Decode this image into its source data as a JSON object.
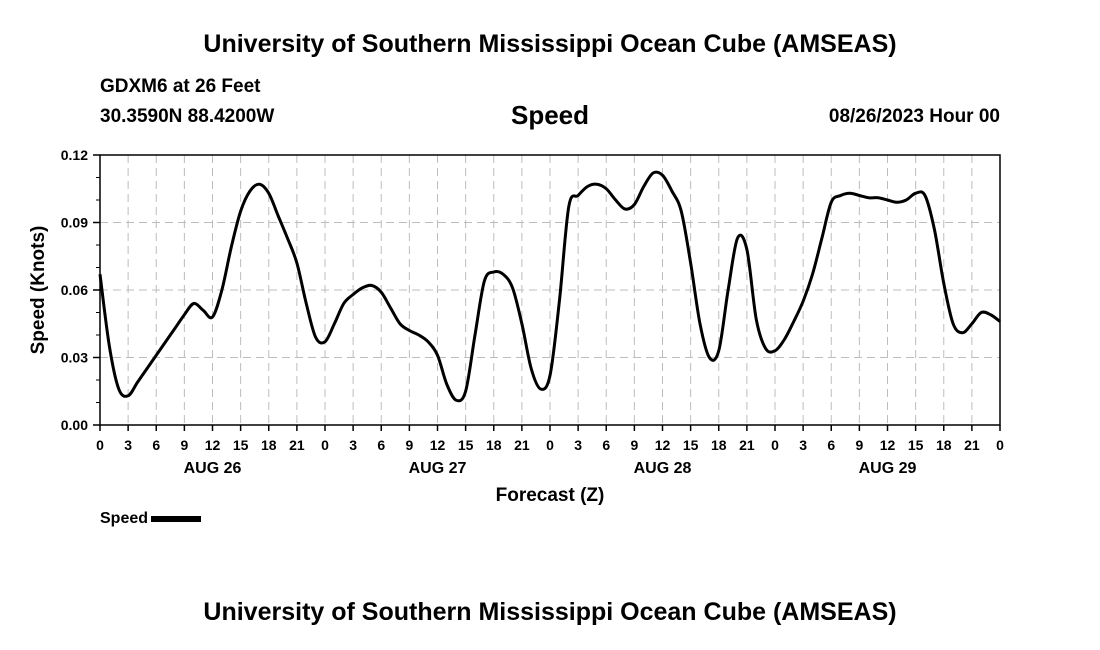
{
  "page": {
    "title_top": "University of Southern Mississippi Ocean Cube (AMSEAS)",
    "title_bottom": "University of Southern Mississippi Ocean Cube (AMSEAS)",
    "station": "GDXM6 at 26 Feet",
    "coords": "30.3590N  88.4200W",
    "datetime": "08/26/2023 Hour 00"
  },
  "chart_data": {
    "type": "line",
    "title": "Speed",
    "xlabel": "Forecast (Z)",
    "ylabel": "Speed (Knots)",
    "ylim": [
      0,
      0.12
    ],
    "xlim": [
      0,
      96
    ],
    "y_ticks": [
      "0.00",
      "0.03",
      "0.06",
      "0.09",
      "0.12"
    ],
    "x_tick_labels": [
      "0",
      "3",
      "6",
      "9",
      "12",
      "15",
      "18",
      "21",
      "0",
      "3",
      "6",
      "9",
      "12",
      "15",
      "18",
      "21",
      "0",
      "3",
      "6",
      "9",
      "12",
      "15",
      "18",
      "21",
      "0",
      "3",
      "6",
      "9",
      "12",
      "15",
      "18",
      "21",
      "0"
    ],
    "day_labels": [
      {
        "label": "AUG 26",
        "hour": 12
      },
      {
        "label": "AUG 27",
        "hour": 36
      },
      {
        "label": "AUG 28",
        "hour": 60
      },
      {
        "label": "AUG 29",
        "hour": 84
      }
    ],
    "grid": true,
    "color": "#000000",
    "series": [
      {
        "name": "Speed",
        "x": [
          0,
          1,
          2,
          3,
          4,
          5,
          6,
          7,
          8,
          9,
          10,
          11,
          12,
          13,
          14,
          15,
          16,
          17,
          18,
          19,
          20,
          21,
          22,
          23,
          24,
          25,
          26,
          27,
          28,
          29,
          30,
          31,
          32,
          33,
          34,
          35,
          36,
          37,
          38,
          39,
          40,
          41,
          42,
          43,
          44,
          45,
          46,
          47,
          48,
          49,
          50,
          51,
          52,
          53,
          54,
          55,
          56,
          57,
          58,
          59,
          60,
          61,
          62,
          63,
          64,
          65,
          66,
          67,
          68,
          69,
          70,
          71,
          72,
          73,
          74,
          75,
          76,
          77,
          78,
          79,
          80,
          81,
          82,
          83,
          84,
          85,
          86,
          87,
          88,
          89,
          90,
          91,
          92,
          93,
          94,
          95,
          96
        ],
        "values": [
          0.067,
          0.035,
          0.016,
          0.013,
          0.019,
          0.025,
          0.031,
          0.037,
          0.043,
          0.049,
          0.054,
          0.051,
          0.048,
          0.06,
          0.079,
          0.095,
          0.104,
          0.107,
          0.103,
          0.093,
          0.083,
          0.072,
          0.054,
          0.039,
          0.037,
          0.045,
          0.054,
          0.058,
          0.061,
          0.062,
          0.059,
          0.052,
          0.045,
          0.042,
          0.04,
          0.037,
          0.031,
          0.018,
          0.011,
          0.015,
          0.04,
          0.064,
          0.068,
          0.067,
          0.061,
          0.045,
          0.025,
          0.016,
          0.022,
          0.055,
          0.097,
          0.102,
          0.106,
          0.107,
          0.105,
          0.1,
          0.096,
          0.098,
          0.106,
          0.112,
          0.111,
          0.104,
          0.095,
          0.072,
          0.045,
          0.03,
          0.033,
          0.06,
          0.083,
          0.078,
          0.047,
          0.034,
          0.033,
          0.038,
          0.046,
          0.055,
          0.067,
          0.083,
          0.099,
          0.102,
          0.103,
          0.102,
          0.101,
          0.101,
          0.1,
          0.099,
          0.1,
          0.103,
          0.102,
          0.087,
          0.063,
          0.045,
          0.041,
          0.045,
          0.05,
          0.049,
          0.046
        ]
      }
    ],
    "legend": {
      "label": "Speed",
      "position": "bottom-left"
    }
  }
}
